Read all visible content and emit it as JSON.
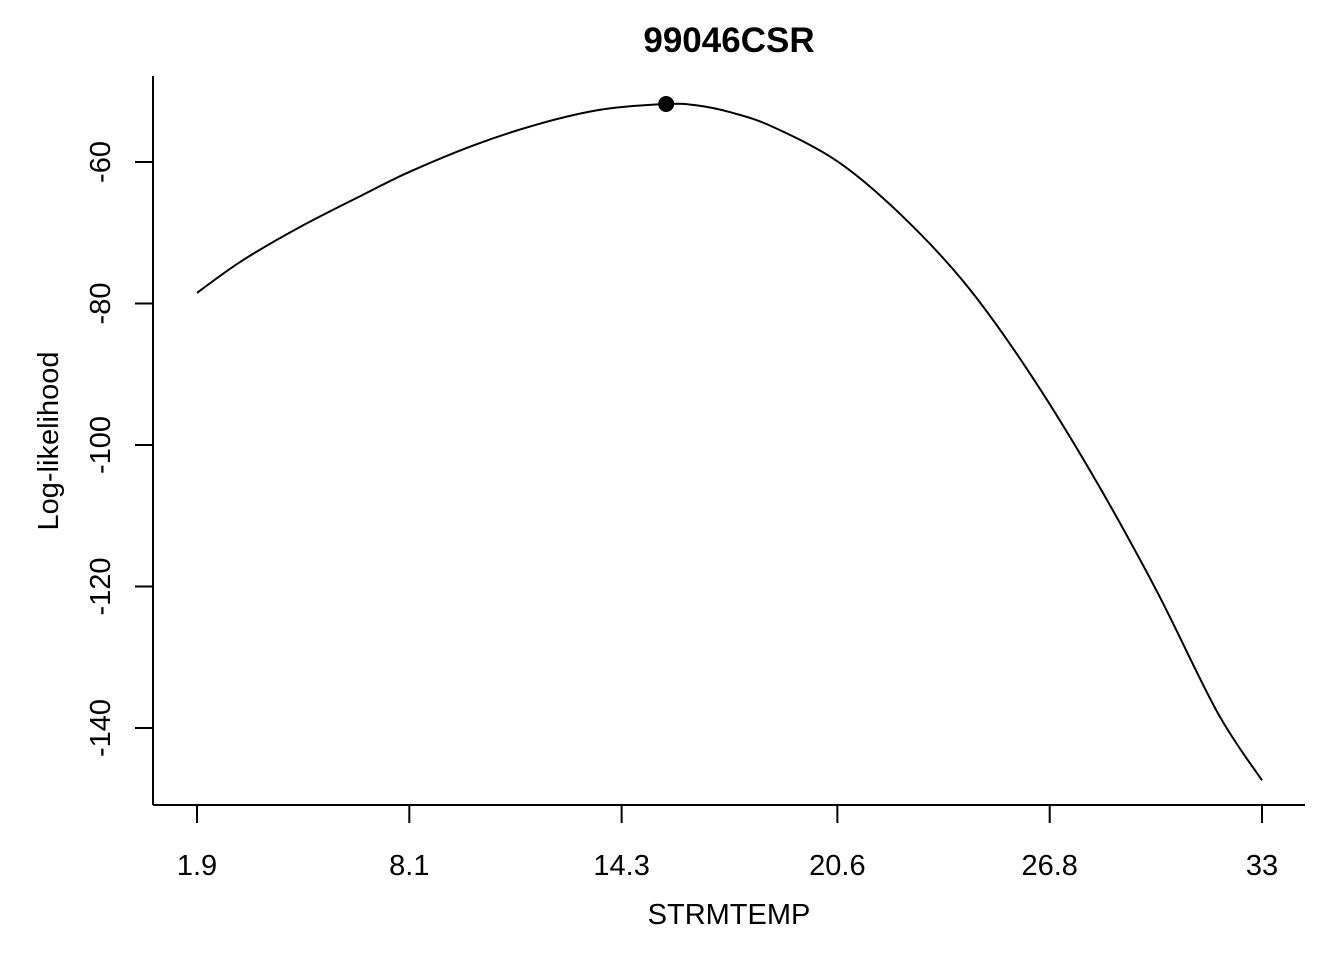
{
  "chart_data": {
    "type": "line",
    "title": "99046CSR",
    "xlabel": "STRMTEMP",
    "ylabel": "Log-likelihood",
    "x_ticks": [
      1.9,
      8.1,
      14.3,
      20.6,
      26.8,
      33
    ],
    "x_tick_labels": [
      "1.9",
      "8.1",
      "14.3",
      "20.6",
      "26.8",
      "33"
    ],
    "y_ticks": [
      -60,
      -80,
      -100,
      -120,
      -140
    ],
    "y_tick_labels": [
      "-60",
      "-80",
      "-100",
      "-120",
      "-140"
    ],
    "xlim": [
      0.6,
      33.0
    ],
    "ylim": [
      -150.5,
      -47.7
    ],
    "grid": false,
    "series": [
      {
        "x": [
          1.9,
          3.2,
          4.9,
          6.8,
          8.1,
          10.0,
          11.9,
          13.7,
          15.6,
          16.5,
          17.5,
          18.7,
          20.6,
          22.4,
          24.3,
          26.1,
          28.0,
          29.9,
          31.7,
          33.0
        ],
        "y": [
          -78.5,
          -74.0,
          -69.2,
          -64.5,
          -61.4,
          -57.6,
          -54.6,
          -52.6,
          -51.8,
          -52.0,
          -53.0,
          -55.0,
          -59.9,
          -67.2,
          -77.0,
          -89.0,
          -103.8,
          -120.4,
          -137.8,
          -147.4
        ]
      }
    ],
    "highlight_point": {
      "x": 15.6,
      "y": -51.8
    }
  }
}
